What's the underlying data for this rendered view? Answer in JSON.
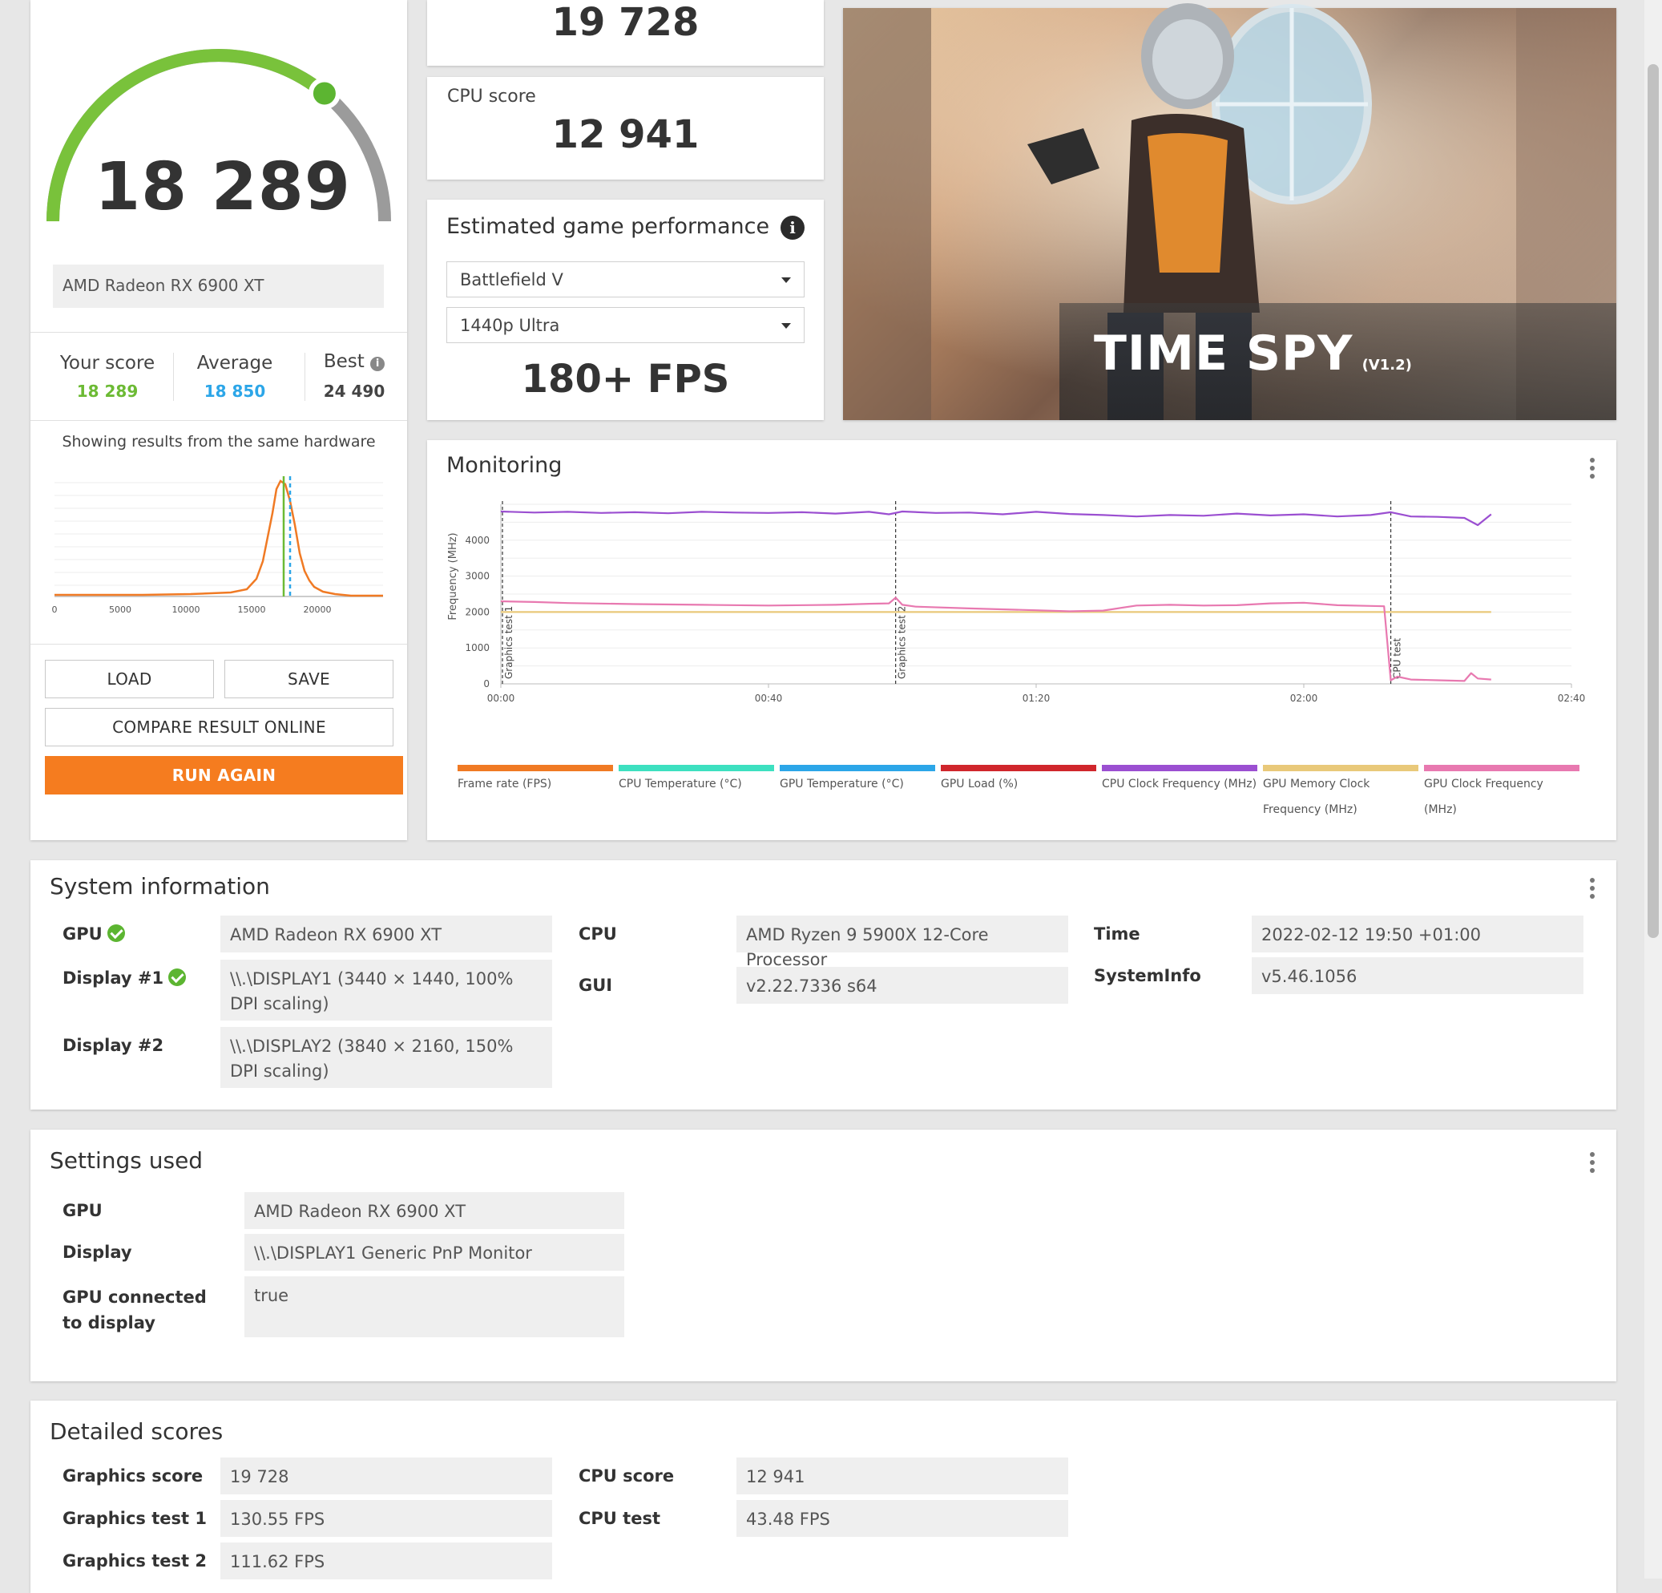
{
  "score_card": {
    "main_score": "18 289",
    "gpu_name": "AMD Radeon RX 6900 XT",
    "your_score_label": "Your score",
    "your_score": "18 289",
    "average_label": "Average",
    "average": "18 850",
    "best_label": "Best",
    "best": "24 490",
    "showing_text": "Showing results from the same hardware",
    "gauge_fraction": 0.72,
    "dist_ticks": [
      "0",
      "5000",
      "10000",
      "15000",
      "20000"
    ],
    "load_label": "LOAD",
    "save_label": "SAVE",
    "compare_label": "COMPARE RESULT ONLINE",
    "run_again_label": "RUN AGAIN"
  },
  "graphics_card": {
    "score": "19 728"
  },
  "cpu_card": {
    "label": "CPU score",
    "score": "12 941"
  },
  "game_perf": {
    "title": "Estimated game performance",
    "game": "Battlefield V",
    "preset": "1440p Ultra",
    "fps": "180+ FPS"
  },
  "hero": {
    "title": "TIME SPY",
    "version": "(V1.2)"
  },
  "monitoring": {
    "title": "Monitoring",
    "chart_data": {
      "type": "line",
      "ylabel": "Frequency (MHz)",
      "y_ticks": [
        "0",
        "1000",
        "2000",
        "3000",
        "4000"
      ],
      "x_ticks": [
        "00:00",
        "00:40",
        "01:20",
        "02:00",
        "02:40"
      ],
      "ylim": [
        0,
        5000
      ],
      "xlim": [
        0,
        160
      ],
      "markers": [
        {
          "label": "Graphics test 1",
          "x": 0
        },
        {
          "label": "Graphics test 2",
          "x": 59
        },
        {
          "label": "CPU test",
          "x": 133
        }
      ],
      "series": [
        {
          "name": "CPU Clock Frequency (MHz)",
          "color": "#9b4fd1",
          "x": [
            0,
            5,
            10,
            15,
            20,
            25,
            30,
            35,
            40,
            45,
            50,
            55,
            58,
            60,
            65,
            70,
            75,
            80,
            85,
            90,
            95,
            100,
            105,
            110,
            115,
            120,
            125,
            130,
            133,
            136,
            140,
            144,
            146,
            148
          ],
          "y": [
            4800,
            4770,
            4790,
            4760,
            4780,
            4750,
            4790,
            4770,
            4760,
            4780,
            4740,
            4790,
            4720,
            4800,
            4760,
            4770,
            4720,
            4790,
            4730,
            4700,
            4660,
            4700,
            4680,
            4740,
            4690,
            4720,
            4660,
            4700,
            4780,
            4660,
            4650,
            4620,
            4420,
            4720
          ]
        },
        {
          "name": "GPU Memory Clock Frequency (MHz)",
          "color": "#e9c97a",
          "x": [
            0,
            148
          ],
          "y": [
            2000,
            2000
          ]
        },
        {
          "name": "GPU Clock Frequency (MHz)",
          "color": "#e879b0",
          "x": [
            0,
            5,
            10,
            20,
            30,
            40,
            50,
            55,
            58,
            59,
            60,
            62,
            70,
            80,
            85,
            90,
            95,
            100,
            105,
            110,
            115,
            120,
            125,
            130,
            132,
            133,
            134,
            136,
            140,
            144,
            145,
            146,
            148
          ],
          "y": [
            2300,
            2280,
            2250,
            2220,
            2200,
            2180,
            2200,
            2230,
            2240,
            2400,
            2200,
            2150,
            2100,
            2050,
            2020,
            2040,
            2180,
            2200,
            2180,
            2190,
            2240,
            2260,
            2190,
            2170,
            2160,
            100,
            200,
            120,
            100,
            80,
            300,
            150,
            120
          ]
        }
      ],
      "legend": [
        {
          "name": "Frame rate (FPS)",
          "color": "#f07a24"
        },
        {
          "name": "CPU Temperature (°C)",
          "color": "#3de0c0"
        },
        {
          "name": "GPU Temperature (°C)",
          "color": "#2ca6e8"
        },
        {
          "name": "GPU Load (%)",
          "color": "#d0262c"
        },
        {
          "name": "CPU Clock Frequency (MHz)",
          "color": "#9b4fd1"
        },
        {
          "name": "GPU Memory Clock Frequency (MHz)",
          "color": "#e9c97a"
        },
        {
          "name": "GPU Clock Frequency (MHz)",
          "color": "#e879b0"
        }
      ]
    }
  },
  "sysinfo": {
    "title": "System information",
    "gpu_label": "GPU",
    "gpu": "AMD Radeon RX 6900 XT",
    "display1_label": "Display #1",
    "display1": "\\\\.\\DISPLAY1 (3440 × 1440, 100% DPI scaling)",
    "display2_label": "Display #2",
    "display2": "\\\\.\\DISPLAY2 (3840 × 2160, 150% DPI scaling)",
    "cpu_label": "CPU",
    "cpu": "AMD Ryzen 9 5900X 12-Core Processor",
    "gui_label": "GUI",
    "gui": "v2.22.7336 s64",
    "time_label": "Time",
    "time": "2022-02-12 19:50 +01:00",
    "systeminfo_label": "SystemInfo",
    "systeminfo": "v5.46.1056"
  },
  "settings": {
    "title": "Settings used",
    "gpu_label": "GPU",
    "gpu": "AMD Radeon RX 6900 XT",
    "display_label": "Display",
    "display": "\\\\.\\DISPLAY1 Generic PnP Monitor",
    "connected_label": "GPU connected to display",
    "connected": "true"
  },
  "detailed": {
    "title": "Detailed scores",
    "graphics_score_label": "Graphics score",
    "graphics_score": "19 728",
    "gt1_label": "Graphics test 1",
    "gt1": "130.55 FPS",
    "gt2_label": "Graphics test 2",
    "gt2": "111.62 FPS",
    "cpu_score_label": "CPU score",
    "cpu_score": "12 941",
    "cpu_test_label": "CPU test",
    "cpu_test": "43.48 FPS"
  }
}
